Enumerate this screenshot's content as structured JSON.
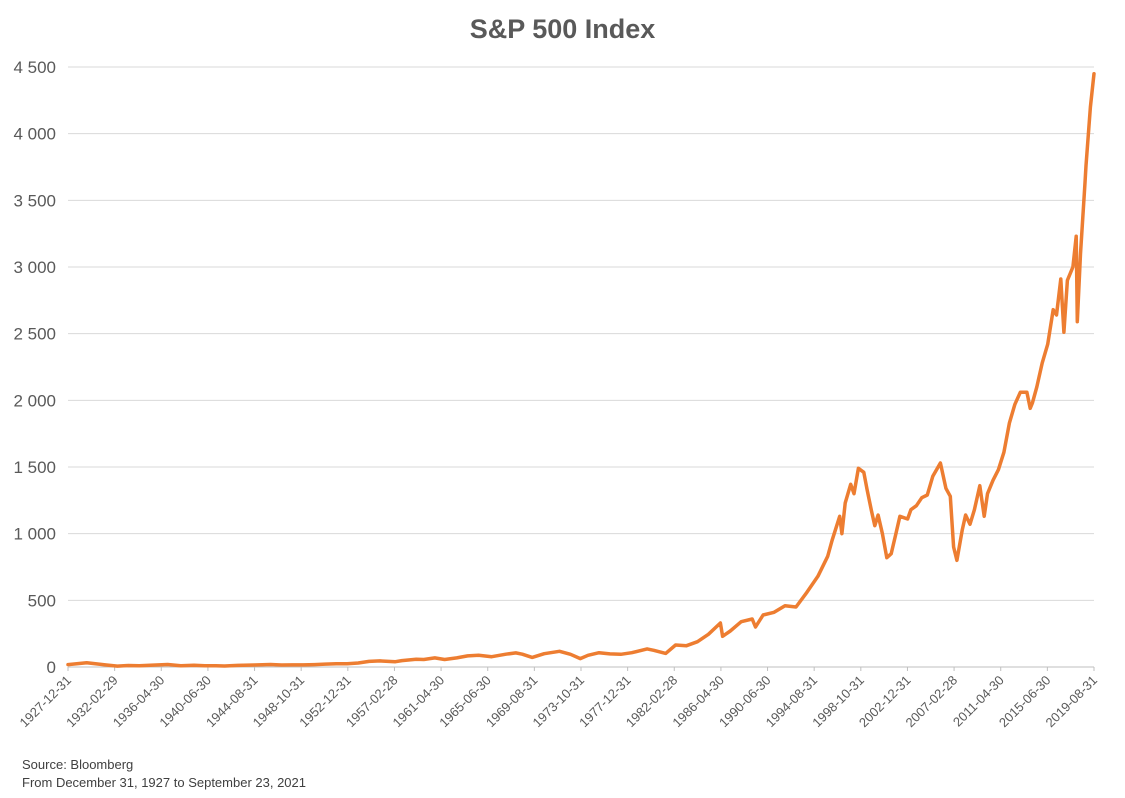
{
  "chart_data": {
    "type": "line",
    "title": "S&P 500 Index",
    "source": "Source: Bloomberg",
    "range_note": "From December 31, 1927 to September 23, 2021",
    "ylim": [
      0,
      4500
    ],
    "y_ticks": [
      {
        "value": 0,
        "label": "0"
      },
      {
        "value": 500,
        "label": "500"
      },
      {
        "value": 1000,
        "label": "1 000"
      },
      {
        "value": 1500,
        "label": "1 500"
      },
      {
        "value": 2000,
        "label": "2 000"
      },
      {
        "value": 2500,
        "label": "2 500"
      },
      {
        "value": 3000,
        "label": "3 000"
      },
      {
        "value": 3500,
        "label": "3 500"
      },
      {
        "value": 4000,
        "label": "4 000"
      },
      {
        "value": 4500,
        "label": "4 500"
      }
    ],
    "x_ticks": [
      "1927-12-31",
      "1932-02-29",
      "1936-04-30",
      "1940-06-30",
      "1944-08-31",
      "1948-10-31",
      "1952-12-31",
      "1957-02-28",
      "1961-04-30",
      "1965-06-30",
      "1969-08-31",
      "1973-10-31",
      "1977-12-31",
      "1982-02-28",
      "1986-04-30",
      "1990-06-30",
      "1994-08-31",
      "1998-10-31",
      "2002-12-31",
      "2007-02-28",
      "2011-04-30",
      "2015-06-30",
      "2019-08-31"
    ],
    "grid": true,
    "legend": "none",
    "line_color": "#ED7D31",
    "series": [
      {
        "values": [
          [
            1927.99,
            17.7
          ],
          [
            1929.7,
            31.7
          ],
          [
            1930.5,
            25
          ],
          [
            1931.5,
            15
          ],
          [
            1932.5,
            6.9
          ],
          [
            1933.5,
            11
          ],
          [
            1934.5,
            10
          ],
          [
            1935.5,
            13
          ],
          [
            1937.1,
            18.7
          ],
          [
            1938.3,
            10
          ],
          [
            1939.5,
            12.5
          ],
          [
            1940.5,
            10
          ],
          [
            1941.5,
            9
          ],
          [
            1942.3,
            7.5
          ],
          [
            1943.5,
            12
          ],
          [
            1945.0,
            15
          ],
          [
            1946.5,
            19
          ],
          [
            1947.5,
            15
          ],
          [
            1948.5,
            16
          ],
          [
            1949.5,
            16
          ],
          [
            1950.5,
            18
          ],
          [
            1951.5,
            22
          ],
          [
            1952.5,
            25
          ],
          [
            1953.5,
            24
          ],
          [
            1954.5,
            30
          ],
          [
            1955.5,
            42
          ],
          [
            1956.5,
            46
          ],
          [
            1957.9,
            40
          ],
          [
            1958.5,
            48
          ],
          [
            1959.8,
            58
          ],
          [
            1960.5,
            56
          ],
          [
            1961.5,
            68
          ],
          [
            1962.4,
            56
          ],
          [
            1963.5,
            68
          ],
          [
            1964.5,
            83
          ],
          [
            1965.5,
            88
          ],
          [
            1966.7,
            77
          ],
          [
            1968.0,
            96
          ],
          [
            1968.9,
            106
          ],
          [
            1969.5,
            96
          ],
          [
            1970.4,
            72
          ],
          [
            1971.5,
            100
          ],
          [
            1972.9,
            118
          ],
          [
            1973.9,
            95
          ],
          [
            1974.8,
            63
          ],
          [
            1975.5,
            88
          ],
          [
            1976.5,
            107
          ],
          [
            1977.5,
            98
          ],
          [
            1978.5,
            95
          ],
          [
            1979.5,
            107
          ],
          [
            1980.9,
            136
          ],
          [
            1981.5,
            125
          ],
          [
            1982.6,
            102
          ],
          [
            1983.5,
            165
          ],
          [
            1984.5,
            160
          ],
          [
            1985.5,
            190
          ],
          [
            1986.5,
            245
          ],
          [
            1987.6,
            330
          ],
          [
            1987.8,
            230
          ],
          [
            1988.5,
            270
          ],
          [
            1989.5,
            340
          ],
          [
            1990.5,
            360
          ],
          [
            1990.8,
            300
          ],
          [
            1991.5,
            390
          ],
          [
            1992.5,
            410
          ],
          [
            1993.5,
            460
          ],
          [
            1994.5,
            450
          ],
          [
            1995.5,
            560
          ],
          [
            1996.5,
            680
          ],
          [
            1997.4,
            830
          ],
          [
            1997.8,
            950
          ],
          [
            1998.5,
            1130
          ],
          [
            1998.7,
            1000
          ],
          [
            1999.0,
            1230
          ],
          [
            1999.5,
            1370
          ],
          [
            1999.8,
            1300
          ],
          [
            2000.2,
            1490
          ],
          [
            2000.7,
            1460
          ],
          [
            2001.0,
            1330
          ],
          [
            2001.4,
            1170
          ],
          [
            2001.7,
            1060
          ],
          [
            2002.0,
            1140
          ],
          [
            2002.4,
            1000
          ],
          [
            2002.8,
            820
          ],
          [
            2003.2,
            850
          ],
          [
            2003.6,
            990
          ],
          [
            2004.0,
            1130
          ],
          [
            2004.7,
            1110
          ],
          [
            2005.0,
            1180
          ],
          [
            2005.5,
            1210
          ],
          [
            2006.0,
            1270
          ],
          [
            2006.5,
            1290
          ],
          [
            2007.0,
            1430
          ],
          [
            2007.7,
            1530
          ],
          [
            2008.2,
            1340
          ],
          [
            2008.6,
            1280
          ],
          [
            2008.9,
            900
          ],
          [
            2009.2,
            800
          ],
          [
            2009.7,
            1030
          ],
          [
            2010.0,
            1140
          ],
          [
            2010.4,
            1070
          ],
          [
            2010.8,
            1180
          ],
          [
            2011.3,
            1360
          ],
          [
            2011.7,
            1130
          ],
          [
            2012.0,
            1300
          ],
          [
            2012.5,
            1400
          ],
          [
            2013.0,
            1480
          ],
          [
            2013.5,
            1610
          ],
          [
            2014.0,
            1830
          ],
          [
            2014.5,
            1970
          ],
          [
            2015.0,
            2060
          ],
          [
            2015.6,
            2060
          ],
          [
            2015.9,
            1940
          ],
          [
            2016.1,
            1980
          ],
          [
            2016.5,
            2100
          ],
          [
            2017.0,
            2280
          ],
          [
            2017.5,
            2420
          ],
          [
            2018.0,
            2680
          ],
          [
            2018.3,
            2640
          ],
          [
            2018.7,
            2910
          ],
          [
            2018.98,
            2510
          ],
          [
            2019.3,
            2900
          ],
          [
            2019.8,
            3000
          ],
          [
            2020.1,
            3230
          ],
          [
            2020.2,
            2590
          ],
          [
            2020.5,
            3100
          ],
          [
            2020.9,
            3620
          ],
          [
            2021.0,
            3760
          ],
          [
            2021.4,
            4200
          ],
          [
            2021.73,
            4450
          ]
        ]
      }
    ]
  }
}
